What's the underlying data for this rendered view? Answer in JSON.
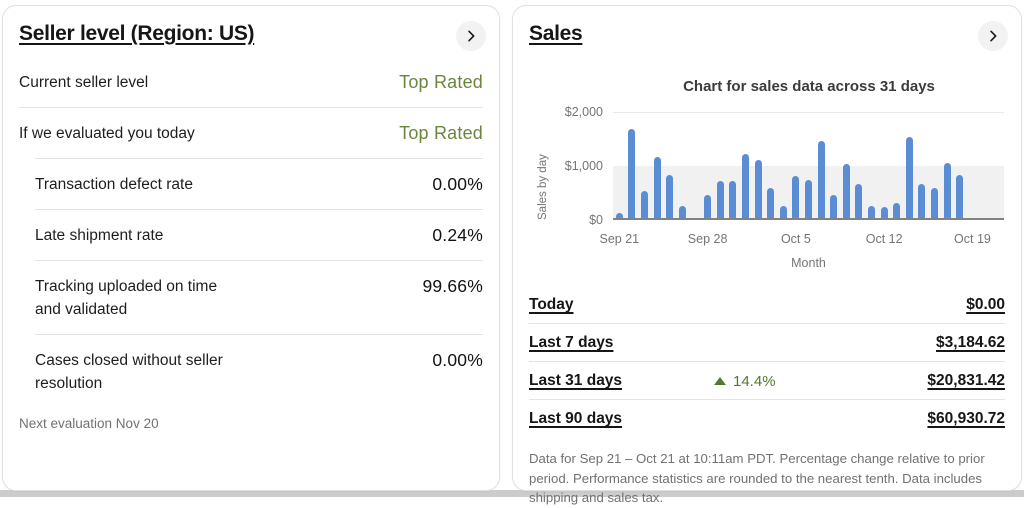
{
  "seller_card": {
    "title": "Seller level (Region: US)",
    "rows": [
      {
        "label": "Current seller level",
        "value": "Top Rated",
        "type": "level",
        "indent": false
      },
      {
        "label": "If we evaluated you today",
        "value": "Top Rated",
        "type": "level",
        "indent": false
      },
      {
        "label": "Transaction defect rate",
        "value": "0.00%",
        "type": "metric",
        "indent": true
      },
      {
        "label": "Late shipment rate",
        "value": "0.24%",
        "type": "metric",
        "indent": true
      },
      {
        "label": "Tracking uploaded on time and validated",
        "value": "99.66%",
        "type": "metric",
        "indent": true
      },
      {
        "label": "Cases closed without seller resolution",
        "value": "0.00%",
        "type": "metric",
        "indent": true
      }
    ],
    "footnote": "Next evaluation Nov 20"
  },
  "sales_card": {
    "title": "Sales",
    "rows": [
      {
        "label": "Today",
        "value": "$0.00",
        "change": null
      },
      {
        "label": "Last 7 days",
        "value": "$3,184.62",
        "change": null
      },
      {
        "label": "Last 31 days",
        "value": "$20,831.42",
        "change": "14.4%",
        "change_direction": "up"
      },
      {
        "label": "Last 90 days",
        "value": "$60,930.72",
        "change": null
      }
    ],
    "footnote": "Data for Sep 21 – Oct 21 at 10:11am PDT. Percentage change relative to prior period. Performance statistics are rounded to the nearest tenth. Data includes shipping and sales tax."
  },
  "chart_data": {
    "type": "bar",
    "title": "Chart for sales data across 31 days",
    "xlabel": "Month",
    "ylabel": "Sales by day",
    "ylim": [
      0,
      2000
    ],
    "yticks": [
      "$0",
      "$1,000",
      "$2,000"
    ],
    "grid": "horizontal",
    "legend": "none",
    "x": [
      "Sep 21",
      "Sep 22",
      "Sep 23",
      "Sep 24",
      "Sep 25",
      "Sep 26",
      "Sep 27",
      "Sep 28",
      "Sep 29",
      "Sep 30",
      "Oct 1",
      "Oct 2",
      "Oct 3",
      "Oct 4",
      "Oct 5",
      "Oct 6",
      "Oct 7",
      "Oct 8",
      "Oct 9",
      "Oct 10",
      "Oct 11",
      "Oct 12",
      "Oct 13",
      "Oct 14",
      "Oct 15",
      "Oct 16",
      "Oct 17",
      "Oct 18",
      "Oct 19",
      "Oct 20",
      "Oct 21"
    ],
    "values": [
      90,
      1650,
      500,
      1130,
      800,
      230,
      0,
      420,
      690,
      680,
      1190,
      1070,
      550,
      230,
      770,
      700,
      1420,
      420,
      1000,
      630,
      230,
      210,
      270,
      1500,
      630,
      560,
      1020,
      800,
      0,
      0,
      0
    ],
    "xticks": [
      {
        "index": 0,
        "label": "Sep 21"
      },
      {
        "index": 7,
        "label": "Sep 28"
      },
      {
        "index": 14,
        "label": "Oct 5"
      },
      {
        "index": 21,
        "label": "Oct 12"
      },
      {
        "index": 28,
        "label": "Oct 19"
      }
    ]
  },
  "colors": {
    "level_green": "#69863c",
    "change_green": "#55782e",
    "bar_blue": "#5b8dd4",
    "band_gray": "#f1f1f1",
    "strip_gray": "#cccccc"
  }
}
